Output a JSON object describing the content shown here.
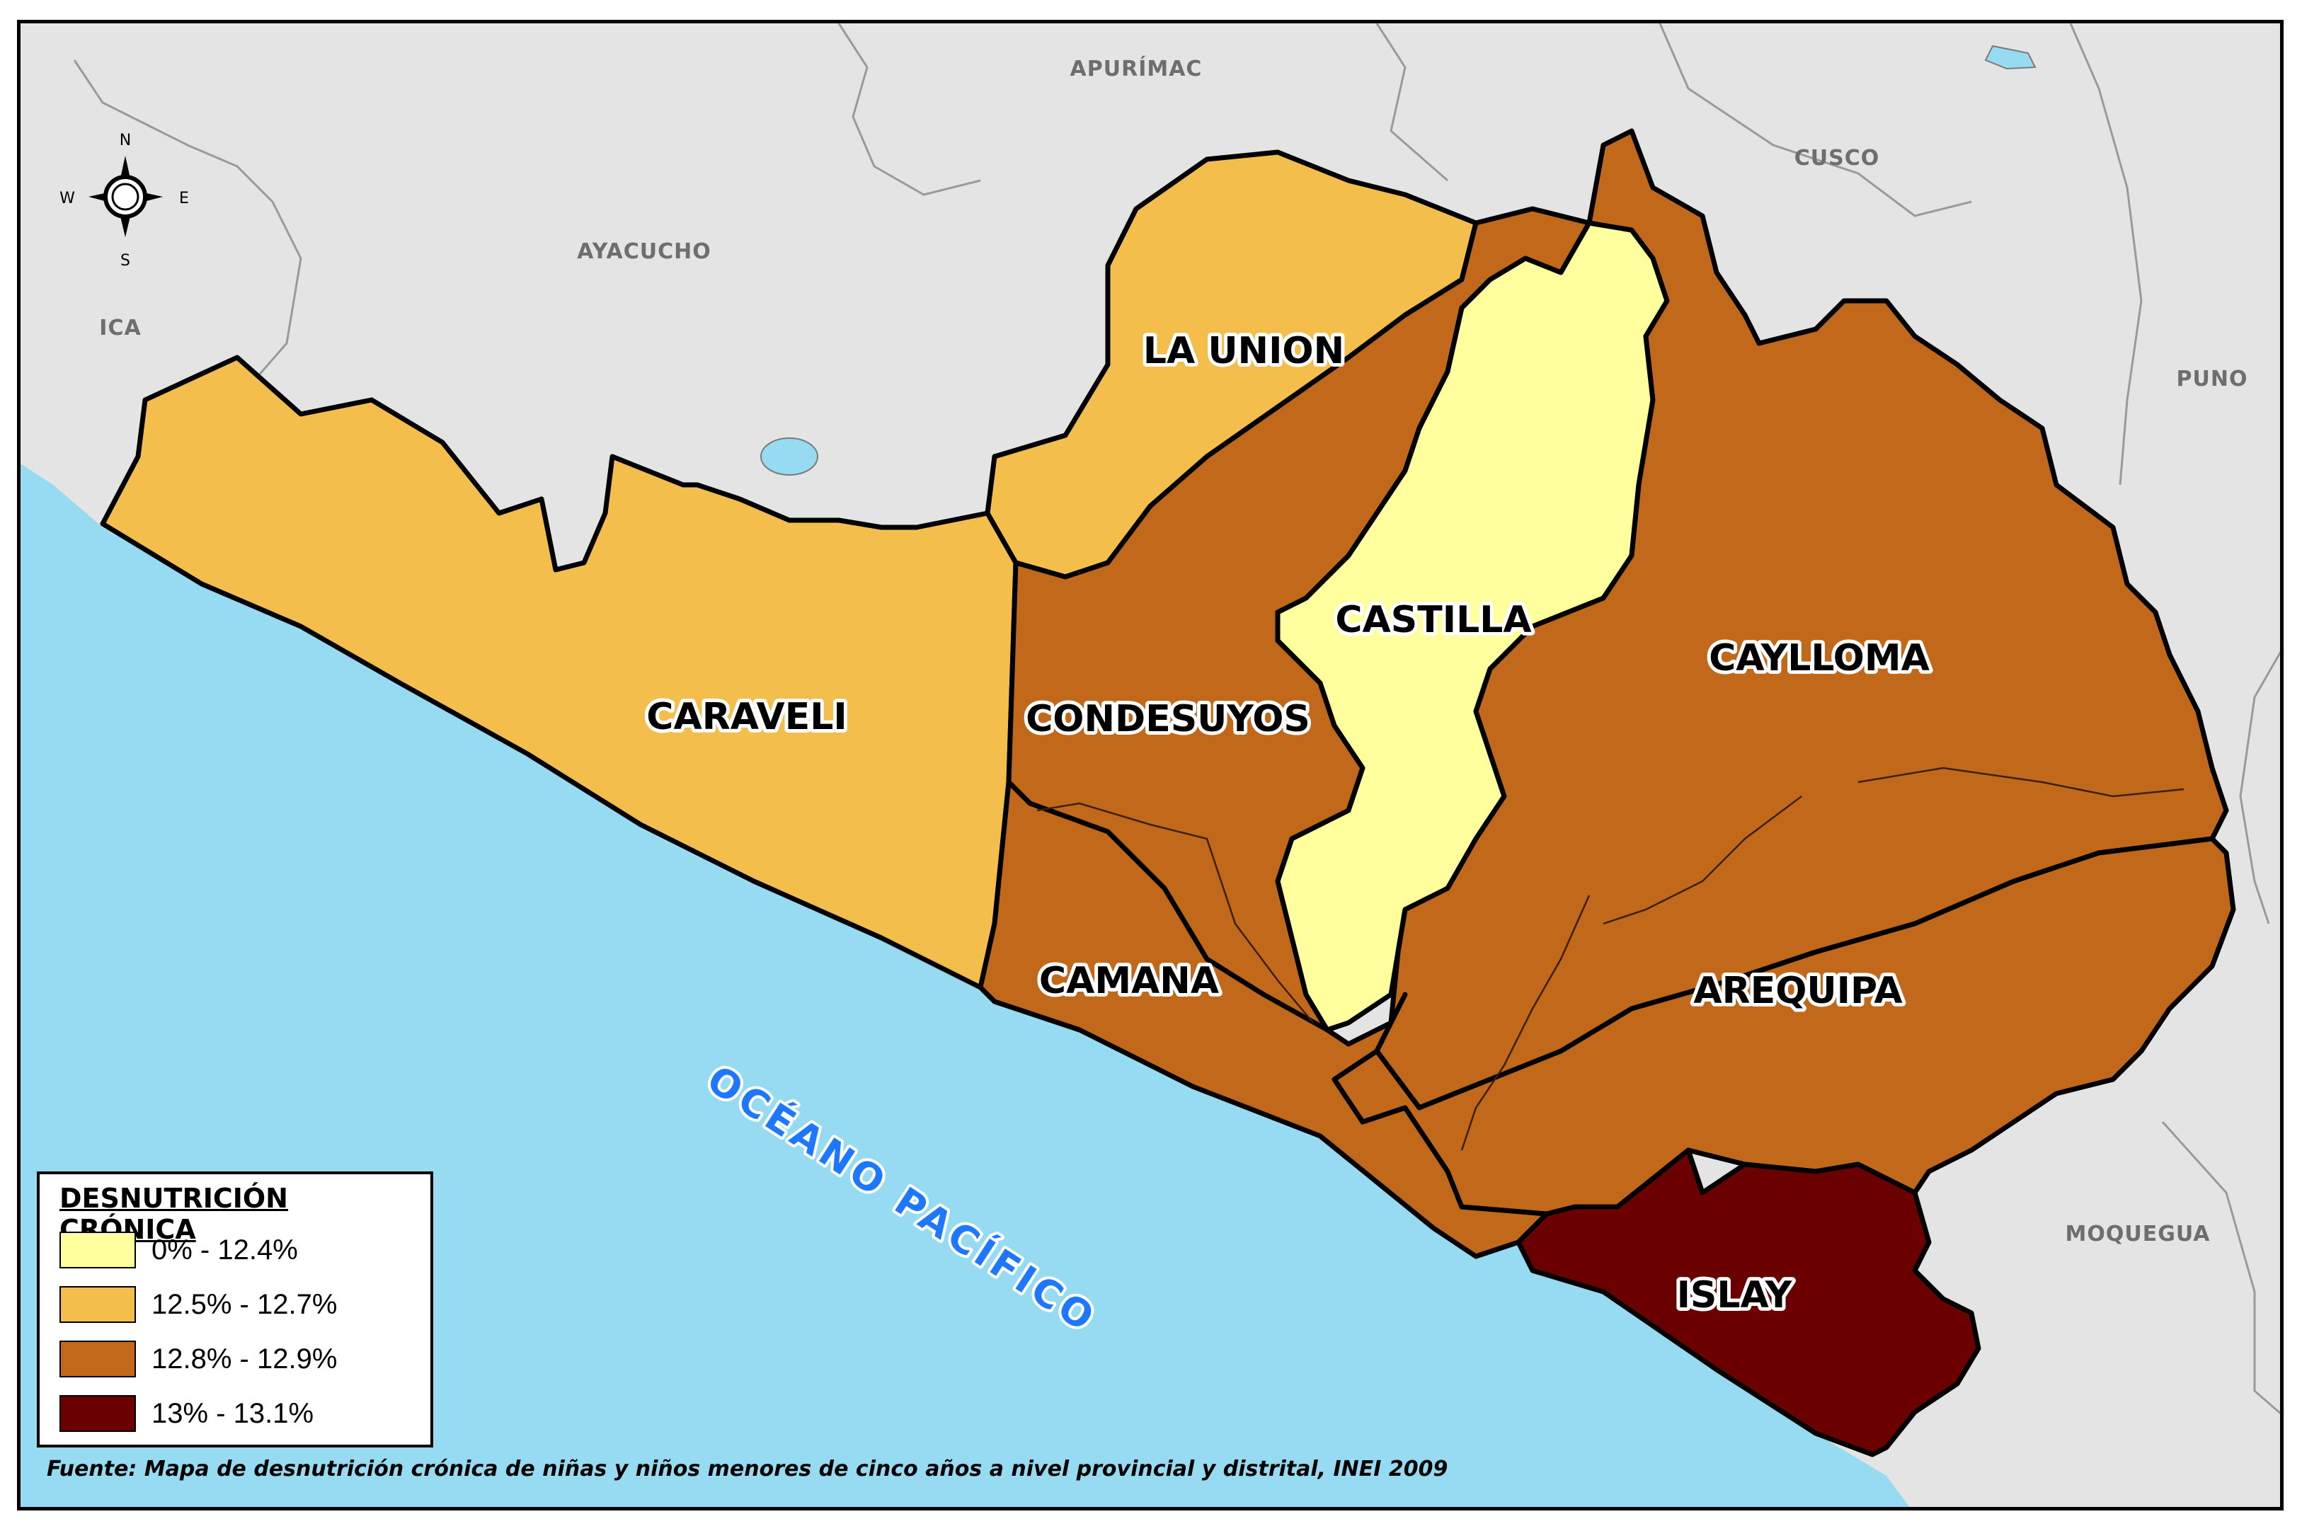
{
  "legend": {
    "title": "DESNUTRICIÓN CRÓNICA",
    "items": [
      {
        "label": "0% - 12.4%",
        "color": "#ffff9e"
      },
      {
        "label": "12.5% - 12.7%",
        "color": "#f4be4c"
      },
      {
        "label": "12.8% - 12.9%",
        "color": "#c2681b"
      },
      {
        "label": "13% - 13.1%",
        "color": "#6b0000"
      }
    ]
  },
  "provinces": {
    "la_union": {
      "name": "LA UNION",
      "class": "12.5% - 12.7%"
    },
    "caraveli": {
      "name": "CARAVELI",
      "class": "12.5% - 12.7%"
    },
    "condesuyos": {
      "name": "CONDESUYOS",
      "class": "12.8% - 12.9%"
    },
    "castilla": {
      "name": "CASTILLA",
      "class": "0% - 12.4%"
    },
    "caylloma": {
      "name": "CAYLLOMA",
      "class": "12.8% - 12.9%"
    },
    "camana": {
      "name": "CAMANA",
      "class": "12.8% - 12.9%"
    },
    "arequipa": {
      "name": "AREQUIPA",
      "class": "12.8% - 12.9%"
    },
    "islay": {
      "name": "ISLAY",
      "class": "13% - 13.1%"
    }
  },
  "neighbors": {
    "apurimac": "APURÍMAC",
    "cusco": "CUSCO",
    "ayacucho": "AYACUCHO",
    "ica": "ICA",
    "puno": "PUNO",
    "moquegua": "MOQUEGUA"
  },
  "ocean": {
    "name": "OCÉANO PACÍFICO",
    "color": "#97dbf2"
  },
  "compass": {
    "n": "N",
    "s": "S",
    "e": "E",
    "w": "W"
  },
  "source": "Fuente: Mapa de desnutrición crónica de niñas y niños menores de cinco años a nivel provincial y distrital, INEI 2009"
}
